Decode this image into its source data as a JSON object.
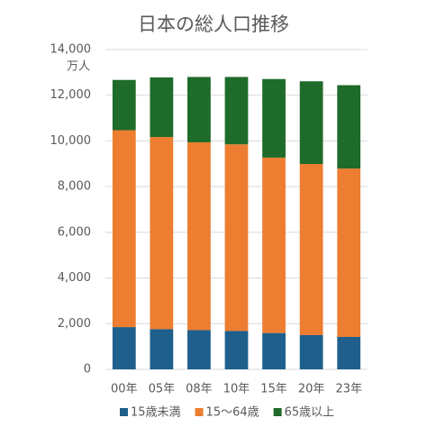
{
  "chart_data": {
    "type": "stacked-bar",
    "title": "日本の総人口推移",
    "unit": "万人",
    "categories": [
      "00年",
      "05年",
      "08年",
      "10年",
      "15年",
      "20年",
      "23年"
    ],
    "series": [
      {
        "name": "15歳未満",
        "color": "#1f5f8b",
        "values": [
          1850,
          1760,
          1720,
          1680,
          1590,
          1500,
          1420
        ]
      },
      {
        "name": "15～64歳",
        "color": "#ed7d31",
        "values": [
          8620,
          8410,
          8220,
          8170,
          7680,
          7490,
          7370
        ]
      },
      {
        "name": "65歳以上",
        "color": "#1e6b2a",
        "values": [
          2200,
          2610,
          2860,
          2950,
          3440,
          3620,
          3650
        ]
      }
    ],
    "ylim": [
      0,
      14000
    ],
    "yticks": [
      0,
      {
        "value": 2000,
        "label": "2,000"
      },
      {
        "value": 4000,
        "label": "4,000"
      },
      {
        "value": 6000,
        "label": "6,000"
      },
      {
        "value": 8000,
        "label": "8,000"
      },
      {
        "value": 10000,
        "label": "10,000"
      },
      {
        "value": 12000,
        "label": "12,000"
      },
      {
        "value": 14000,
        "label": "14,000"
      }
    ],
    "grid": true,
    "legend": "bottom"
  }
}
